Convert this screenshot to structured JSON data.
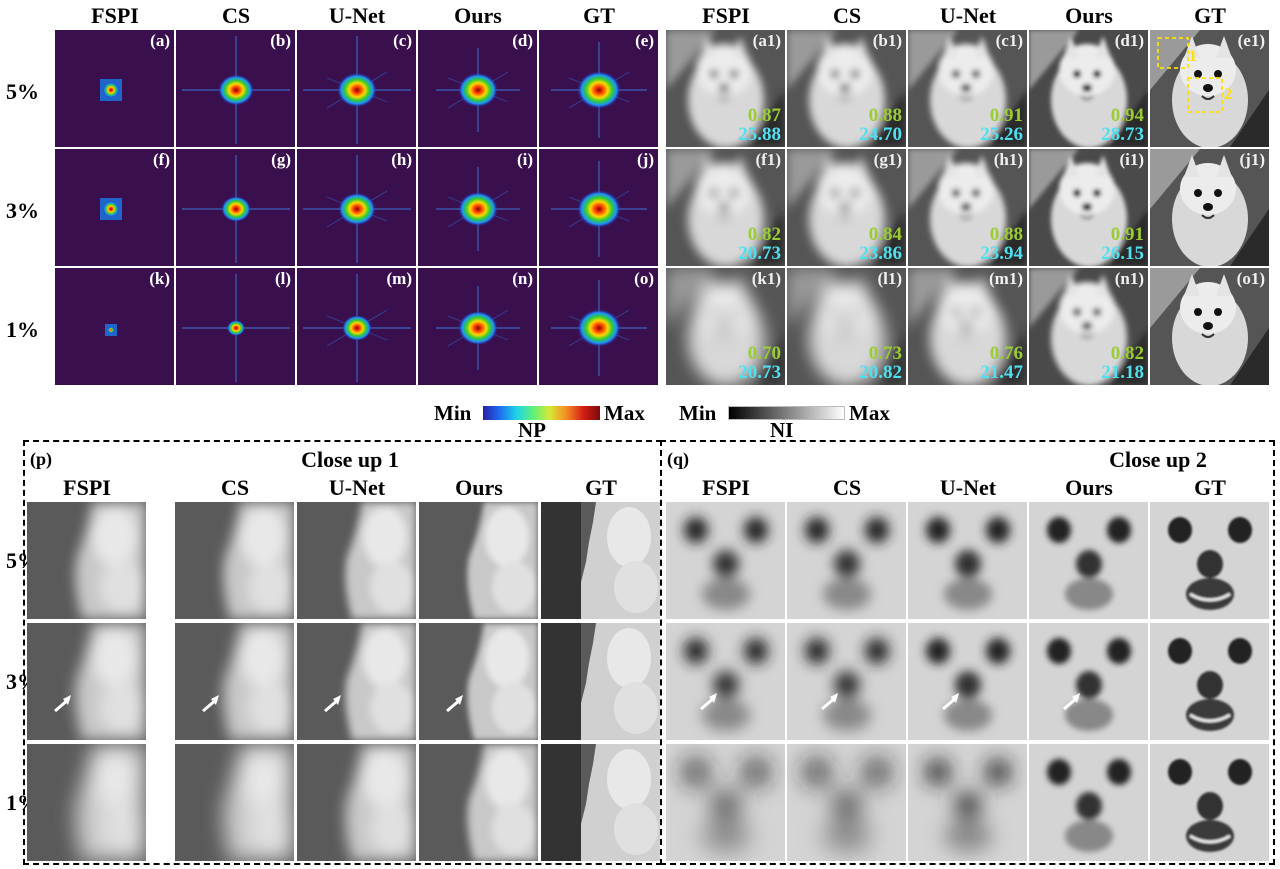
{
  "top_headers": [
    "FSPI",
    "CS",
    "U-Net",
    "Ours",
    "GT",
    "FSPI",
    "CS",
    "U-Net",
    "Ours",
    "GT"
  ],
  "row_labels": [
    "5%",
    "3%",
    "1%"
  ],
  "np_tags": [
    [
      "(a)",
      "(b)",
      "(c)",
      "(d)",
      "(e)"
    ],
    [
      "(f)",
      "(g)",
      "(h)",
      "(i)",
      "(j)"
    ],
    [
      "(k)",
      "(l)",
      "(m)",
      "(n)",
      "(o)"
    ]
  ],
  "ni_tags": [
    [
      "(a1)",
      "(b1)",
      "(c1)",
      "(d1)",
      "(e1)"
    ],
    [
      "(f1)",
      "(g1)",
      "(h1)",
      "(i1)",
      "(j1)"
    ],
    [
      "(k1)",
      "(l1)",
      "(m1)",
      "(n1)",
      "(o1)"
    ]
  ],
  "ssim": [
    [
      "0.87",
      "0.88",
      "0.91",
      "0.94"
    ],
    [
      "0.82",
      "0.84",
      "0.88",
      "0.91"
    ],
    [
      "0.70",
      "0.73",
      "0.76",
      "0.82"
    ]
  ],
  "psnr": [
    [
      "25.88",
      "24.70",
      "25.26",
      "28.73"
    ],
    [
      "20.73",
      "23.86",
      "23.94",
      "26.15"
    ],
    [
      "20.73",
      "20.82",
      "21.47",
      "21.18"
    ]
  ],
  "gt_box_labels": [
    "1",
    "2"
  ],
  "colorbars": {
    "np": {
      "min": "Min",
      "max": "Max",
      "name": "NP"
    },
    "ni": {
      "min": "Min",
      "max": "Max",
      "name": "NI"
    }
  },
  "closeup1": {
    "tag": "(p)",
    "title": "Close up 1",
    "headers": [
      "FSPI",
      "CS",
      "U-Net",
      "Ours",
      "GT"
    ]
  },
  "closeup2": {
    "tag": "(q)",
    "title": "Close up 2",
    "headers": [
      "FSPI",
      "CS",
      "U-Net",
      "Ours",
      "GT"
    ]
  },
  "bottom_row_labels": [
    "5%",
    "3%",
    "1%"
  ],
  "colors": {
    "np_bg": "#3a0f4e",
    "box": "#ffe000",
    "ssim": "#9acd32",
    "psnr": "#4fe0f0"
  }
}
